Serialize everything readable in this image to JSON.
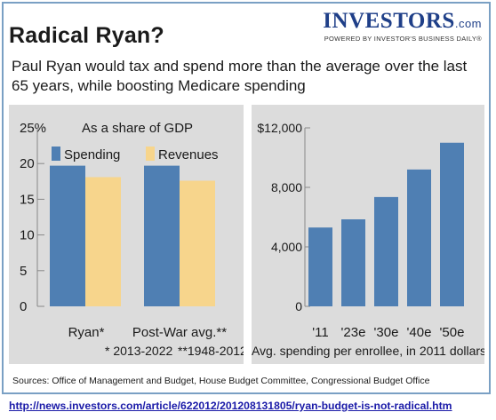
{
  "header": {
    "title": "Radical Ryan?",
    "subtitle": "Paul Ryan would tax and spend more than the average over the last 65 years, while boosting Medicare spending"
  },
  "logo": {
    "main": "INVESTORS",
    "suffix": ".com",
    "tagline": "POWERED BY INVESTOR'S BUSINESS DAILY®"
  },
  "colors": {
    "spending": "#4f7fb3",
    "revenues": "#f7d58c",
    "panel_bg": "#dcdcdc",
    "brand": "#1f3f88",
    "url": "#1a1aa8"
  },
  "chart_data": [
    {
      "type": "bar",
      "title": "As a share of GDP",
      "categories": [
        "Ryan*",
        "Post-War avg.**"
      ],
      "series": [
        {
          "name": "Spending",
          "values": [
            19.7,
            19.7
          ]
        },
        {
          "name": "Revenues",
          "values": [
            18.1,
            17.6
          ]
        }
      ],
      "ylim": [
        0,
        25
      ],
      "yticks": [
        "0",
        "5",
        "10",
        "15",
        "20",
        "25%"
      ],
      "footnotes": [
        "* 2013-2022",
        "**1948-2012"
      ],
      "legend_position": "top",
      "grid": false
    },
    {
      "type": "bar",
      "categories": [
        "'11",
        "'23e",
        "'30e",
        "'40e",
        "'50e"
      ],
      "values": [
        5300,
        5850,
        7350,
        9200,
        11000
      ],
      "ylim": [
        0,
        12000
      ],
      "yticks": [
        "0",
        "4,000",
        "8,000",
        "$12,000"
      ],
      "xlabel": "Avg. spending per enrollee, in 2011 dollars",
      "grid": false
    }
  ],
  "footer": {
    "sources": "Sources: Office of Management and Budget, House Budget Committee, Congressional Budget Office",
    "url": "http://news.investors.com/article/622012/201208131805/ryan-budget-is-not-radical.htm"
  }
}
